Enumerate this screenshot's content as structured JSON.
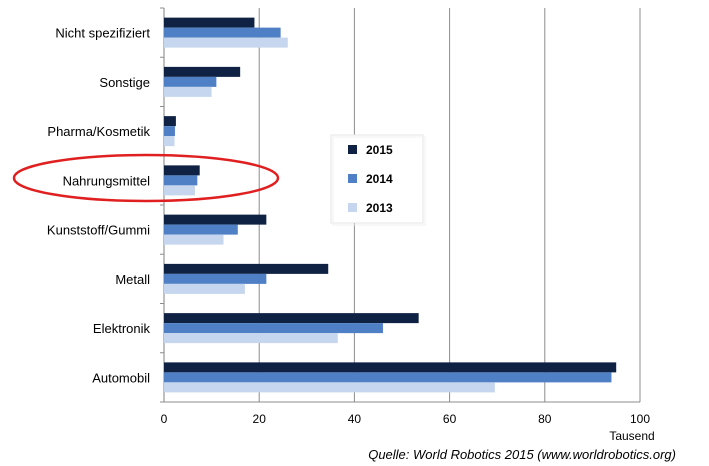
{
  "chart_data": {
    "type": "bar",
    "orientation": "horizontal",
    "categories": [
      "Nicht spezifiziert",
      "Sonstige",
      "Pharma/Kosmetik",
      "Nahrungsmittel",
      "Kunststoff/Gummi",
      "Metall",
      "Elektronik",
      "Automobil"
    ],
    "series": [
      {
        "name": "2015",
        "color": "#0f2244",
        "values": [
          19,
          16,
          2.5,
          7.5,
          21.5,
          34.5,
          53.5,
          95
        ]
      },
      {
        "name": "2014",
        "color": "#4f7fc4",
        "values": [
          24.5,
          11,
          2.3,
          7,
          15.5,
          21.5,
          46,
          94
        ]
      },
      {
        "name": "2013",
        "color": "#c5d6ee",
        "values": [
          26,
          10,
          2.2,
          6.5,
          12.5,
          17,
          36.5,
          69.5
        ]
      }
    ],
    "xlim": [
      0,
      100
    ],
    "xticks": [
      "0",
      "20",
      "40",
      "60",
      "80",
      "100"
    ],
    "xlabel": "Tausend",
    "grid": true,
    "legend_position": "center-right",
    "highlight": {
      "category": "Nahrungsmittel",
      "shape": "ellipse",
      "color": "#e02020"
    },
    "source": "Quelle: World Robotics 2015 (www.worldrobotics.org)"
  }
}
